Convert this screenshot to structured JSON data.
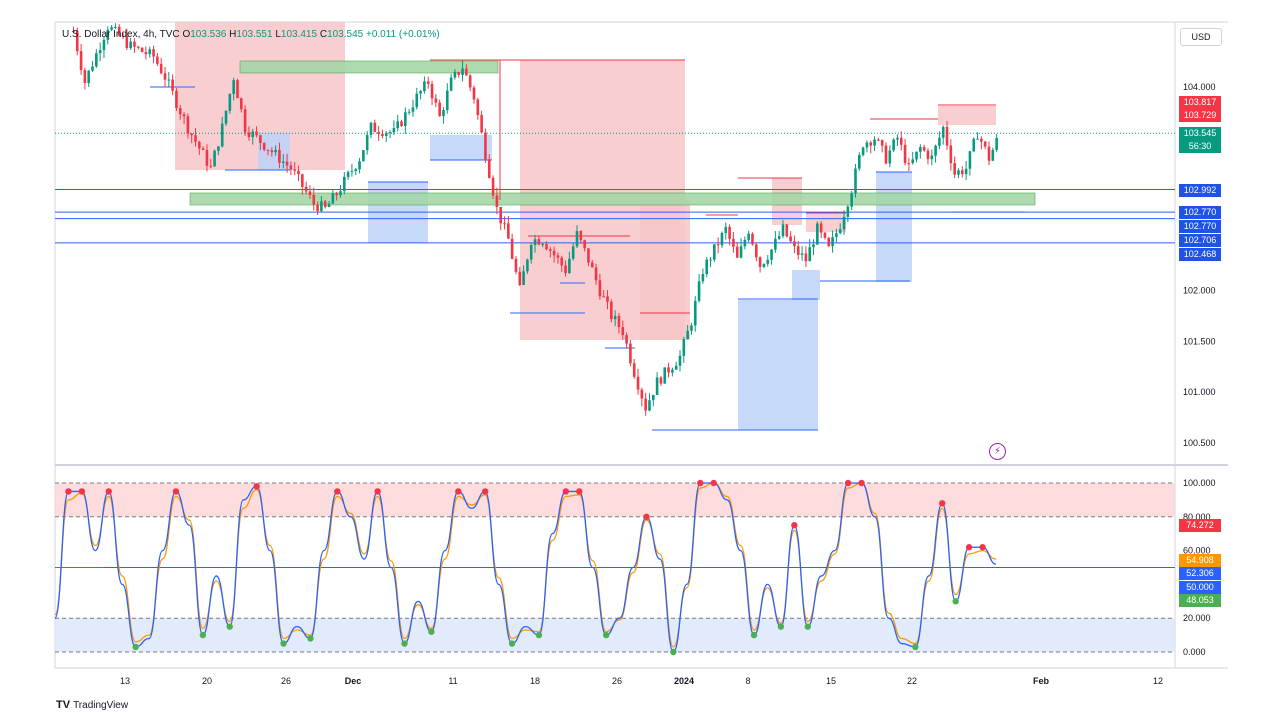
{
  "header": {
    "symbol": "U.S. Dollar Index, 4h, TVC",
    "o_label": "O",
    "o": "103.536",
    "h_label": "H",
    "h": "103.551",
    "l_label": "L",
    "l": "103.415",
    "c_label": "C",
    "c": "103.545",
    "change": "+0.011 (+0.01%)"
  },
  "currency": "USD",
  "branding": "TradingView",
  "colors": {
    "up": "#089981",
    "down": "#f23645",
    "blue_line": "#2962ff",
    "supply": "#f7c6c9",
    "demand": "#bcd2f7",
    "zone_green": "#a5d6a7",
    "stoch_k": "#2962ff",
    "stoch_d": "#ff9800"
  },
  "price_tags": [
    {
      "value": "103.817",
      "color": "#f23645"
    },
    {
      "value": "103.729",
      "color": "#f23645"
    },
    {
      "value": "103.545",
      "color": "#089981"
    },
    {
      "value": "56:30",
      "color": "#089981"
    },
    {
      "value": "102.992",
      "color": "#1e53e5"
    },
    {
      "value": "102.770",
      "color": "#1e53e5"
    },
    {
      "value": "102.770",
      "color": "#1e53e5"
    },
    {
      "value": "102.706",
      "color": "#1e53e5"
    },
    {
      "value": "102.468",
      "color": "#1e53e5"
    }
  ],
  "osc_tags": [
    {
      "value": "74.272",
      "color": "#f23645"
    },
    {
      "value": "54.908",
      "color": "#ff9800"
    },
    {
      "value": "52.306",
      "color": "#2962ff"
    },
    {
      "value": "50.000",
      "color": "#2962ff"
    },
    {
      "value": "48.053",
      "color": "#4caf50"
    }
  ],
  "chart_data": [
    {
      "type": "candlestick",
      "title": "U.S. Dollar Index, 4h, TVC",
      "ylim": [
        100.35,
        104.7
      ],
      "y_ticks": [
        "104.000",
        "102.000",
        "101.500",
        "101.000",
        "100.500"
      ],
      "x_ticks": [
        "13",
        "20",
        "26",
        "Dec",
        "11",
        "18",
        "26",
        "2024",
        "8",
        "15",
        "22",
        "Feb",
        "12"
      ],
      "close_path": [
        [
          "Nov 9",
          104.55
        ],
        [
          "Nov 10",
          104.05
        ],
        [
          "Nov 12",
          104.6
        ],
        [
          "Nov 14",
          104.4
        ],
        [
          "Nov 16",
          104.3
        ],
        [
          "Nov 17",
          104.1
        ],
        [
          "Nov 19",
          103.6
        ],
        [
          "Nov 21",
          103.2
        ],
        [
          "Nov 22",
          103.6
        ],
        [
          "Nov 23",
          104.1
        ],
        [
          "Nov 24",
          103.6
        ],
        [
          "Nov 26",
          103.4
        ],
        [
          "Nov 28",
          103.2
        ],
        [
          "Nov 30",
          102.85
        ],
        [
          "Dec 1",
          102.8
        ],
        [
          "Dec 2",
          102.95
        ],
        [
          "Dec 4",
          103.3
        ],
        [
          "Dec 5",
          103.6
        ],
        [
          "Dec 7",
          103.55
        ],
        [
          "Dec 9",
          103.9
        ],
        [
          "Dec 10",
          104.05
        ],
        [
          "Dec 11",
          103.7
        ],
        [
          "Dec 12",
          104.05
        ],
        [
          "Dec 13",
          104.2
        ],
        [
          "Dec 14",
          103.9
        ],
        [
          "Dec 16",
          102.8
        ],
        [
          "Dec 17",
          102.5
        ],
        [
          "Dec 18",
          102.0
        ],
        [
          "Dec 19",
          102.5
        ],
        [
          "Dec 20",
          102.5
        ],
        [
          "Dec 22",
          102.2
        ],
        [
          "Dec 23",
          102.55
        ],
        [
          "Dec 24",
          102.3
        ],
        [
          "Dec 25",
          102.0
        ],
        [
          "Dec 26",
          101.75
        ],
        [
          "Dec 27",
          101.6
        ],
        [
          "Dec 28",
          101.2
        ],
        [
          "Dec 29",
          100.85
        ],
        [
          "Dec 30",
          101.1
        ],
        [
          "Jan 1",
          101.35
        ],
        [
          "Jan 2",
          101.7
        ],
        [
          "Jan 3",
          102.2
        ],
        [
          "Jan 4",
          102.4
        ],
        [
          "Jan 5",
          102.6
        ],
        [
          "Jan 6",
          102.3
        ],
        [
          "Jan 7",
          102.6
        ],
        [
          "Jan 8",
          102.25
        ],
        [
          "Jan 9",
          102.4
        ],
        [
          "Jan 10",
          102.6
        ],
        [
          "Jan 11",
          102.4
        ],
        [
          "Jan 12",
          102.3
        ],
        [
          "Jan 13",
          102.6
        ],
        [
          "Jan 14",
          102.4
        ],
        [
          "Jan 15",
          102.65
        ],
        [
          "Jan 16",
          103.0
        ],
        [
          "Jan 17",
          103.45
        ],
        [
          "Jan 18",
          103.5
        ],
        [
          "Jan 19",
          103.3
        ],
        [
          "Jan 20",
          103.5
        ],
        [
          "Jan 21",
          103.2
        ],
        [
          "Jan 22",
          103.4
        ],
        [
          "Jan 23",
          103.3
        ],
        [
          "Jan 24",
          103.6
        ],
        [
          "Jan 25",
          103.15
        ],
        [
          "Jan 26",
          103.2
        ],
        [
          "Jan 27",
          103.55
        ],
        [
          "Jan 28",
          103.3
        ],
        [
          "Jan 29",
          103.55
        ]
      ],
      "horizontal_levels": [
        102.992,
        102.77,
        102.706,
        102.468
      ],
      "current_price": 103.545
    },
    {
      "type": "line",
      "title": "Stochastic oscillator",
      "ylim": [
        0,
        100
      ],
      "y_ticks": [
        "100.000",
        "80.000",
        "60.000",
        "20.000",
        "0.000"
      ],
      "levels": [
        100,
        80,
        50,
        20,
        0
      ],
      "series": [
        {
          "values": [
            20,
            95,
            95,
            60,
            95,
            40,
            3,
            8,
            60,
            95,
            75,
            10,
            45,
            15,
            90,
            98,
            60,
            5,
            15,
            8,
            60,
            95,
            80,
            55,
            95,
            50,
            5,
            30,
            12,
            60,
            95,
            85,
            95,
            40,
            5,
            15,
            10,
            70,
            95,
            95,
            50,
            10,
            20,
            50,
            80,
            55,
            0,
            40,
            100,
            100,
            90,
            60,
            10,
            40,
            15,
            75,
            15,
            45,
            60,
            100,
            100,
            80,
            20,
            5,
            3,
            45,
            88,
            30,
            62,
            62,
            52
          ]
        },
        {
          "values": [
            22,
            90,
            94,
            63,
            92,
            45,
            6,
            10,
            55,
            92,
            78,
            14,
            42,
            18,
            85,
            96,
            63,
            8,
            13,
            10,
            55,
            92,
            82,
            58,
            92,
            54,
            8,
            28,
            14,
            55,
            92,
            87,
            93,
            44,
            8,
            13,
            12,
            66,
            92,
            93,
            54,
            12,
            19,
            47,
            78,
            58,
            3,
            38,
            97,
            100,
            92,
            63,
            13,
            38,
            17,
            72,
            18,
            42,
            58,
            97,
            100,
            82,
            23,
            8,
            5,
            42,
            85,
            34,
            58,
            60,
            55
          ]
        }
      ],
      "last_values": [
        52.306,
        54.908
      ]
    }
  ]
}
